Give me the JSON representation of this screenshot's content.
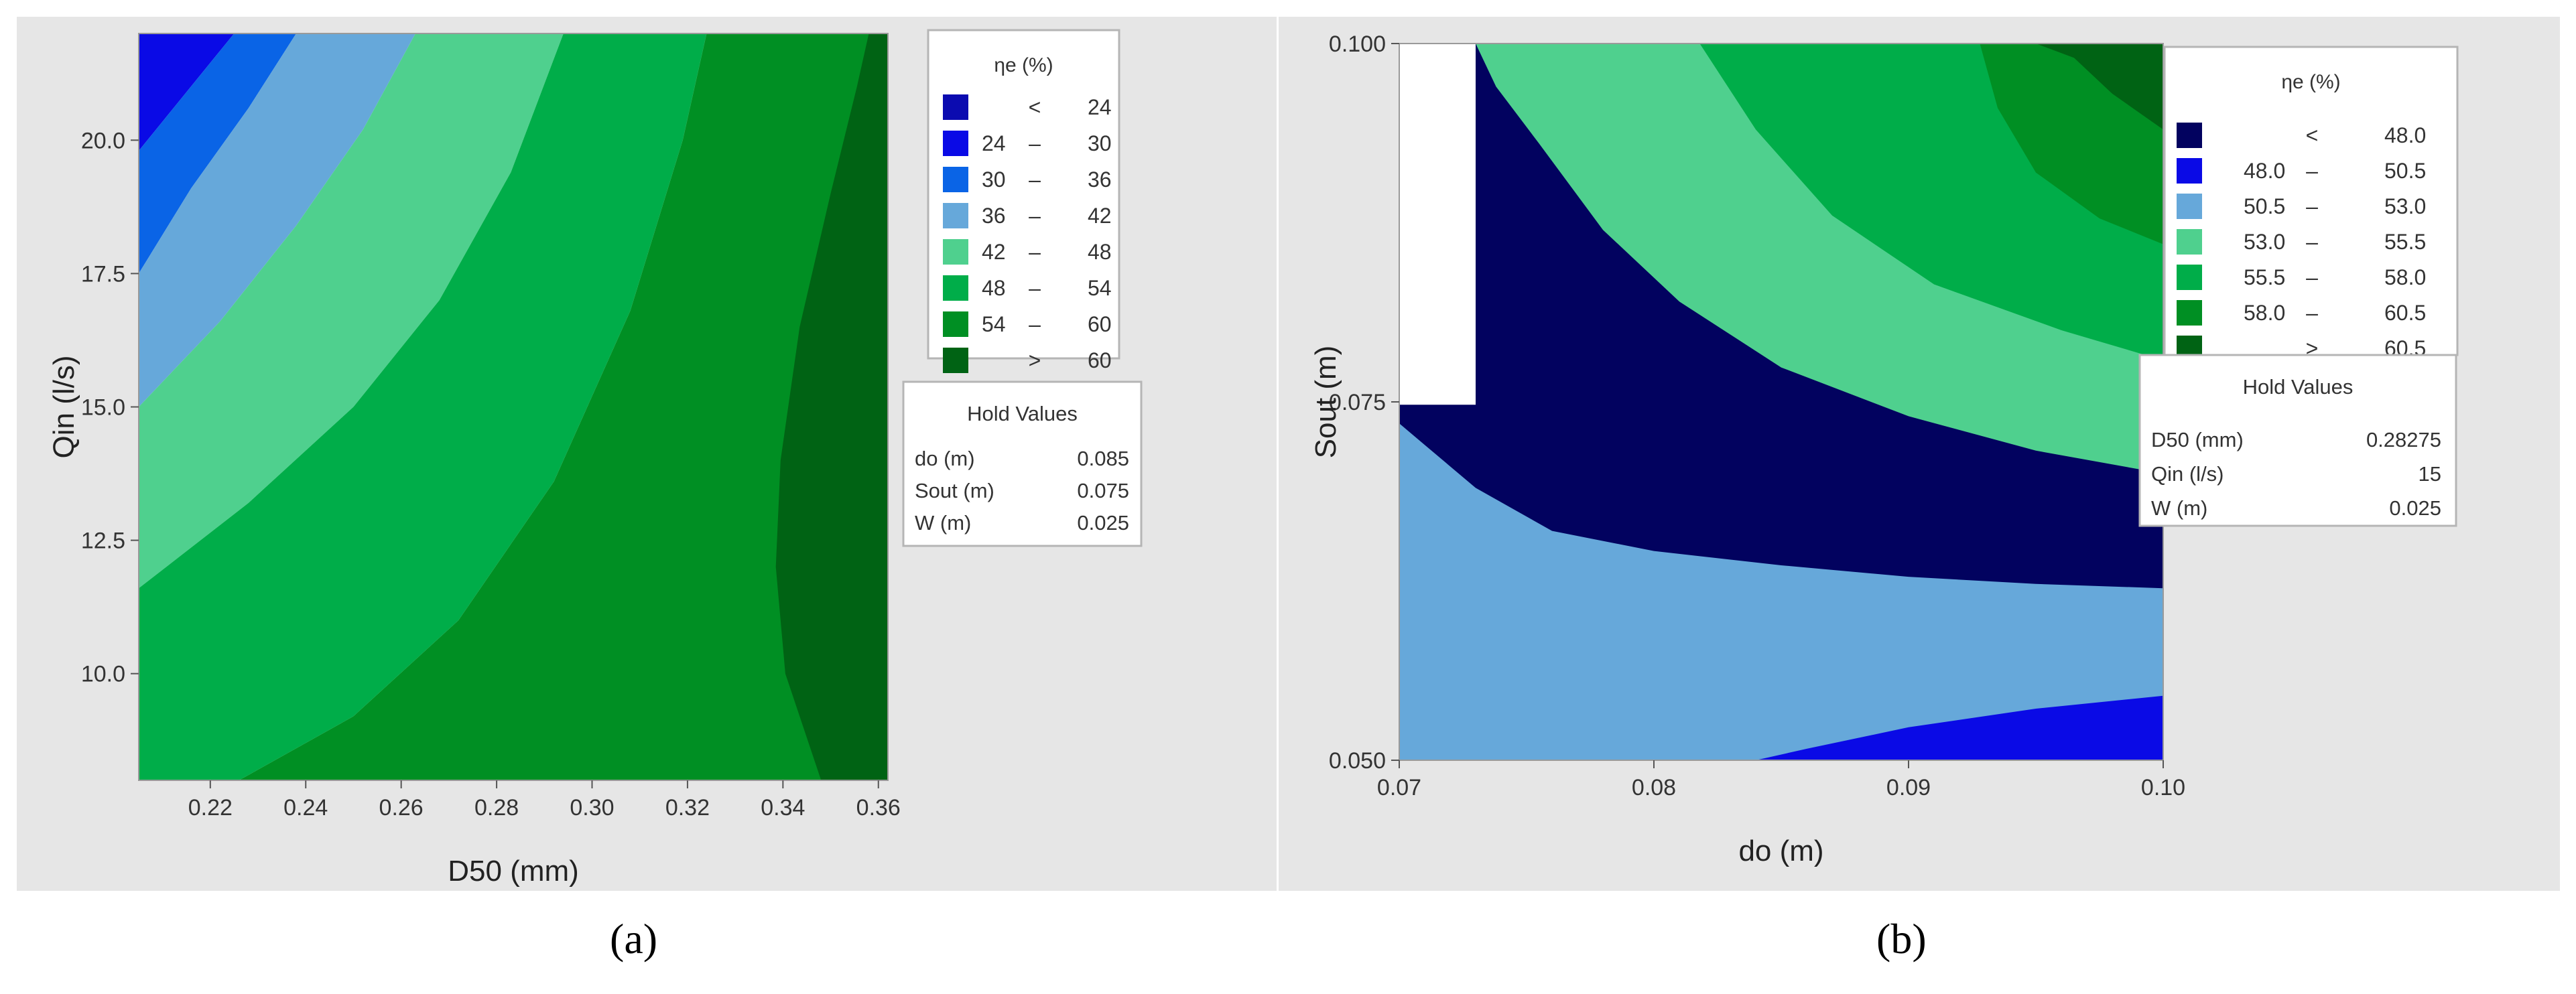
{
  "chart_data": [
    {
      "type": "contour",
      "panel_label": "(a)",
      "xlabel": "D50 (mm)",
      "ylabel": "Qin (l/s)",
      "xlim": [
        0.205,
        0.362
      ],
      "ylim": [
        8.0,
        22.0
      ],
      "xticks": [
        "0.22",
        "0.24",
        "0.26",
        "0.28",
        "0.30",
        "0.32",
        "0.34",
        "0.36"
      ],
      "xtick_values": [
        0.22,
        0.24,
        0.26,
        0.28,
        0.3,
        0.32,
        0.34,
        0.36
      ],
      "yticks": [
        "10.0",
        "12.5",
        "15.0",
        "17.5",
        "20.0"
      ],
      "ytick_values": [
        10.0,
        12.5,
        15.0,
        17.5,
        20.0
      ],
      "legend_title": "ηe (%)",
      "legend": [
        {
          "op": "<",
          "lo": "",
          "hi": "24",
          "color": "#0b0bb0"
        },
        {
          "op": "–",
          "lo": "24",
          "hi": "30",
          "color": "#0a0ae6"
        },
        {
          "op": "–",
          "lo": "30",
          "hi": "36",
          "color": "#0a64e6"
        },
        {
          "op": "–",
          "lo": "36",
          "hi": "42",
          "color": "#66a8da"
        },
        {
          "op": "–",
          "lo": "42",
          "hi": "48",
          "color": "#4fd08e"
        },
        {
          "op": "–",
          "lo": "48",
          "hi": "54",
          "color": "#00ad49"
        },
        {
          "op": "–",
          "lo": "54",
          "hi": "60",
          "color": "#008f23"
        },
        {
          "op": ">",
          "lo": "",
          "hi": "60",
          "color": "#006314"
        }
      ],
      "hold_title": "Hold Values",
      "hold_values": [
        {
          "name": "do (m)",
          "value": "0.085"
        },
        {
          "name": "Sout (m)",
          "value": "0.075"
        },
        {
          "name": "W (m)",
          "value": "0.025"
        }
      ],
      "regions": [
        {
          "level": 1,
          "points": [
            [
              0.205,
              19.8
            ],
            [
              0.225,
              22.0
            ],
            [
              0.205,
              22.0
            ]
          ]
        },
        {
          "level": 2,
          "points": [
            [
              0.205,
              17.5
            ],
            [
              0.216,
              19.1
            ],
            [
              0.228,
              20.6
            ],
            [
              0.238,
              22.0
            ],
            [
              0.225,
              22.0
            ],
            [
              0.205,
              19.8
            ]
          ]
        },
        {
          "level": 3,
          "points": [
            [
              0.205,
              15.0
            ],
            [
              0.222,
              16.6
            ],
            [
              0.238,
              18.4
            ],
            [
              0.252,
              20.2
            ],
            [
              0.263,
              22.0
            ],
            [
              0.238,
              22.0
            ],
            [
              0.228,
              20.6
            ],
            [
              0.216,
              19.1
            ],
            [
              0.205,
              17.5
            ]
          ]
        },
        {
          "level": 4,
          "points": [
            [
              0.205,
              11.6
            ],
            [
              0.228,
              13.2
            ],
            [
              0.25,
              15.0
            ],
            [
              0.268,
              17.0
            ],
            [
              0.283,
              19.4
            ],
            [
              0.294,
              22.0
            ],
            [
              0.263,
              22.0
            ],
            [
              0.252,
              20.2
            ],
            [
              0.238,
              18.4
            ],
            [
              0.222,
              16.6
            ],
            [
              0.205,
              15.0
            ]
          ]
        },
        {
          "level": 5,
          "points": [
            [
              0.205,
              8.0
            ],
            [
              0.226,
              8.0
            ],
            [
              0.25,
              9.2
            ],
            [
              0.272,
              11.0
            ],
            [
              0.292,
              13.6
            ],
            [
              0.308,
              16.8
            ],
            [
              0.319,
              20.0
            ],
            [
              0.324,
              22.0
            ],
            [
              0.294,
              22.0
            ],
            [
              0.283,
              19.4
            ],
            [
              0.268,
              17.0
            ],
            [
              0.25,
              15.0
            ],
            [
              0.228,
              13.2
            ],
            [
              0.205,
              11.6
            ]
          ]
        },
        {
          "level": 6,
          "points": [
            [
              0.226,
              8.0
            ],
            [
              0.362,
              8.0
            ],
            [
              0.362,
              22.0
            ],
            [
              0.324,
              22.0
            ],
            [
              0.319,
              20.0
            ],
            [
              0.308,
              16.8
            ],
            [
              0.292,
              13.6
            ],
            [
              0.272,
              11.0
            ],
            [
              0.25,
              9.2
            ]
          ]
        },
        {
          "level": 7,
          "points": [
            [
              0.362,
              8.0
            ],
            [
              0.348,
              8.0
            ],
            [
              0.3405,
              10.0
            ],
            [
              0.3385,
              12.0
            ],
            [
              0.3395,
              14.0
            ],
            [
              0.3435,
              16.5
            ],
            [
              0.35,
              19.0
            ],
            [
              0.3555,
              21.0
            ],
            [
              0.358,
              22.0
            ],
            [
              0.362,
              22.0
            ]
          ]
        }
      ]
    },
    {
      "type": "contour",
      "panel_label": "(b)",
      "xlabel": "do (m)",
      "ylabel": "Sout (m)",
      "xlim": [
        0.07,
        0.1
      ],
      "ylim": [
        0.05,
        0.1
      ],
      "xticks": [
        "0.07",
        "0.08",
        "0.09",
        "0.10"
      ],
      "xtick_values": [
        0.07,
        0.08,
        0.09,
        0.1
      ],
      "yticks": [
        "0.050",
        "0.075",
        "0.100"
      ],
      "ytick_values": [
        0.05,
        0.075,
        0.1
      ],
      "legend_title": "ηe (%)",
      "legend": [
        {
          "op": "<",
          "lo": "",
          "hi": "48.0",
          "color": "#02025f"
        },
        {
          "op": "–",
          "lo": "48.0",
          "hi": "50.5",
          "color": "#0a0ae6"
        },
        {
          "op": "–",
          "lo": "50.5",
          "hi": "53.0",
          "color": "#66a8da"
        },
        {
          "op": "–",
          "lo": "53.0",
          "hi": "55.5",
          "color": "#4fd08e"
        },
        {
          "op": "–",
          "lo": "55.5",
          "hi": "58.0",
          "color": "#00ad49"
        },
        {
          "op": "–",
          "lo": "58.0",
          "hi": "60.5",
          "color": "#008f23"
        },
        {
          "op": ">",
          "lo": "",
          "hi": "60.5",
          "color": "#006314"
        }
      ],
      "hold_title": "Hold Values",
      "hold_values": [
        {
          "name": "D50 (mm)",
          "value": "0.28275"
        },
        {
          "name": "Qin (l/s)",
          "value": "15"
        },
        {
          "name": "W (m)",
          "value": "0.025"
        }
      ],
      "regions": [
        {
          "level": 0,
          "points": [
            [
              0.07,
              0.05
            ],
            [
              0.1,
              0.05
            ],
            [
              0.1,
              0.0843
            ],
            [
              0.0946,
              0.088
            ],
            [
              0.0894,
              0.092
            ],
            [
              0.0852,
              0.096
            ],
            [
              0.0818,
              0.1
            ],
            [
              0.073,
              0.1
            ],
            [
              0.073,
              0.0748
            ],
            [
              0.07,
              0.0748
            ]
          ]
        },
        {
          "level": 2,
          "points": [
            [
              0.07,
              0.05
            ],
            [
              0.1,
              0.05
            ],
            [
              0.1,
              0.062
            ],
            [
              0.095,
              0.0623
            ],
            [
              0.09,
              0.0628
            ],
            [
              0.085,
              0.0636
            ],
            [
              0.08,
              0.0646
            ],
            [
              0.076,
              0.066
            ],
            [
              0.073,
              0.069
            ],
            [
              0.071,
              0.072
            ],
            [
              0.07,
              0.0735
            ]
          ]
        },
        {
          "level": 1,
          "points": [
            [
              0.084,
              0.05
            ],
            [
              0.1,
              0.05
            ],
            [
              0.1,
              0.0545
            ],
            [
              0.095,
              0.0536
            ],
            [
              0.09,
              0.0523
            ],
            [
              0.086,
              0.0508
            ]
          ]
        },
        {
          "level": 3,
          "points": [
            [
              0.073,
              0.1
            ],
            [
              0.0818,
              0.1
            ],
            [
              0.0852,
              0.096
            ],
            [
              0.0894,
              0.092
            ],
            [
              0.0946,
              0.088
            ],
            [
              0.1,
              0.0843
            ],
            [
              0.1,
              0.07
            ],
            [
              0.095,
              0.0716
            ],
            [
              0.09,
              0.074
            ],
            [
              0.085,
              0.0774
            ],
            [
              0.081,
              0.082
            ],
            [
              0.078,
              0.087
            ],
            [
              0.0755,
              0.093
            ],
            [
              0.0738,
              0.097
            ]
          ]
        },
        {
          "level": 4,
          "points": [
            [
              0.0818,
              0.1
            ],
            [
              0.1,
              0.1
            ],
            [
              0.1,
              0.0779
            ],
            [
              0.096,
              0.08
            ],
            [
              0.091,
              0.0832
            ],
            [
              0.087,
              0.088
            ],
            [
              0.084,
              0.094
            ]
          ]
        },
        {
          "level": 5,
          "points": [
            [
              0.0928,
              0.1
            ],
            [
              0.1,
              0.1
            ],
            [
              0.1,
              0.086
            ],
            [
              0.0975,
              0.0878
            ],
            [
              0.095,
              0.091
            ],
            [
              0.0935,
              0.0955
            ]
          ]
        },
        {
          "level": 6,
          "points": [
            [
              0.095,
              0.1
            ],
            [
              0.1,
              0.1
            ],
            [
              0.1,
              0.094
            ],
            [
              0.098,
              0.0965
            ],
            [
              0.0965,
              0.099
            ]
          ]
        }
      ]
    }
  ]
}
